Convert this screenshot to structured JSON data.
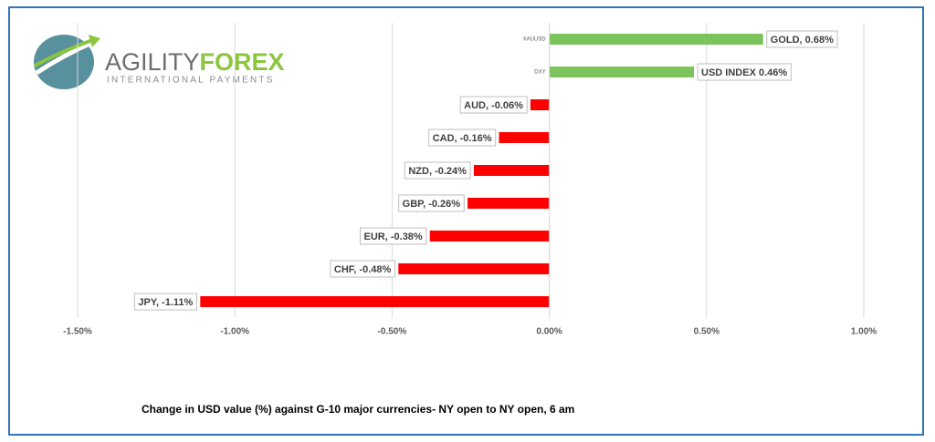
{
  "logo": {
    "name_first": "AGILITY",
    "name_second": "FOREX",
    "tagline": "INTERNATIONAL PAYMENTS"
  },
  "chart_data": {
    "type": "hbar",
    "xlabel": "Change in  USD value (%)  against  G-10 major currencies- NY open to NY open, 6 am",
    "categories": [
      "XAUUSD",
      "DXY",
      null,
      null,
      null,
      null,
      null,
      null,
      null
    ],
    "values": [
      0.68,
      0.46,
      -0.06,
      -0.16,
      -0.24,
      -0.26,
      -0.38,
      -0.48,
      -1.11
    ],
    "value_labels": [
      "GOLD, 0.68%",
      "USD INDEX 0.46%",
      "AUD, -0.06%",
      "CAD, -0.16%",
      "NZD, -0.24%",
      "GBP, -0.26%",
      "EUR, -0.38%",
      "CHF, -0.48%",
      "JPY, -1.11%"
    ],
    "positive_color": "#7cc35c",
    "negative_color": "#ff0000",
    "xlim": [
      -1.5,
      1.0
    ],
    "xticks": [
      {
        "value": -1.5,
        "label": "-1.50%"
      },
      {
        "value": -1.0,
        "label": "-1.00%"
      },
      {
        "value": -0.5,
        "label": "-0.50%"
      },
      {
        "value": 0,
        "label": "0.00%"
      },
      {
        "value": 0.5,
        "label": "0.50%"
      },
      {
        "value": 1.0,
        "label": "1.00%"
      }
    ],
    "grid": true
  }
}
